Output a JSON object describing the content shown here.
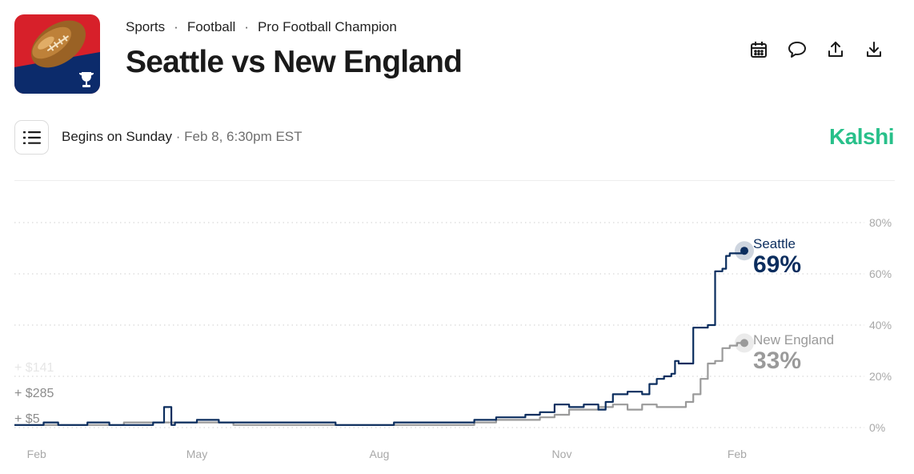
{
  "market": {
    "breadcrumbs": [
      "Sports",
      "Football",
      "Pro Football Champion"
    ],
    "title": "Seattle vs New England",
    "begins_label": "Begins on Sunday",
    "begins_date": " · Feb 8, 6:30pm EST",
    "brand": "Kalshi",
    "logo_icon": "football-trophy-icon"
  },
  "actions": [
    {
      "name": "calendar-icon"
    },
    {
      "name": "comment-icon"
    },
    {
      "name": "share-icon"
    },
    {
      "name": "download-icon"
    }
  ],
  "colors": {
    "seattle": "#0b2d5e",
    "new_england": "#9a9a9a",
    "brand": "#28c08a"
  },
  "chart_data": {
    "type": "line",
    "ylim": [
      0,
      80
    ],
    "yticks": [
      "80%",
      "60%",
      "40%",
      "20%",
      "0%"
    ],
    "ytick_values": [
      80,
      60,
      40,
      20,
      0
    ],
    "xticks": [
      "Feb",
      "May",
      "Aug",
      "Nov",
      "Feb"
    ],
    "grid": true,
    "annotations": [
      "+ $141",
      "+ $285",
      "+ $5"
    ],
    "series": [
      {
        "name": "Seattle",
        "current": "69%",
        "color": "#0b2d5e",
        "x": [
          0,
          0.02,
          0.04,
          0.06,
          0.08,
          0.1,
          0.13,
          0.16,
          0.19,
          0.2,
          0.205,
          0.21,
          0.215,
          0.22,
          0.25,
          0.28,
          0.32,
          0.36,
          0.4,
          0.44,
          0.48,
          0.52,
          0.56,
          0.6,
          0.62,
          0.63,
          0.64,
          0.66,
          0.68,
          0.7,
          0.72,
          0.74,
          0.76,
          0.78,
          0.8,
          0.81,
          0.82,
          0.84,
          0.86,
          0.87,
          0.88,
          0.89,
          0.9,
          0.905,
          0.91,
          0.93,
          0.95,
          0.96,
          0.97,
          0.975,
          0.98,
          0.99,
          1.0
        ],
        "values": [
          1,
          1,
          2,
          1,
          1,
          2,
          1,
          1,
          2,
          2,
          8,
          8,
          1,
          2,
          3,
          2,
          2,
          2,
          2,
          1,
          1,
          2,
          2,
          2,
          2,
          3,
          3,
          4,
          4,
          5,
          6,
          9,
          8,
          9,
          7,
          10,
          13,
          14,
          13,
          17,
          19,
          20,
          21,
          26,
          25,
          39,
          40,
          61,
          62,
          67,
          68,
          68,
          69
        ]
      },
      {
        "name": "New England",
        "current": "33%",
        "color": "#9a9a9a",
        "x": [
          0,
          0.05,
          0.1,
          0.15,
          0.2,
          0.25,
          0.3,
          0.35,
          0.4,
          0.45,
          0.5,
          0.55,
          0.6,
          0.63,
          0.66,
          0.7,
          0.72,
          0.74,
          0.76,
          0.78,
          0.8,
          0.82,
          0.84,
          0.86,
          0.88,
          0.9,
          0.91,
          0.92,
          0.93,
          0.94,
          0.95,
          0.96,
          0.97,
          0.98,
          0.99,
          1.0
        ],
        "values": [
          1,
          1,
          1,
          2,
          2,
          2,
          1,
          1,
          1,
          1,
          1,
          1,
          1,
          2,
          3,
          3,
          4,
          5,
          7,
          7,
          8,
          9,
          7,
          9,
          8,
          8,
          8,
          10,
          13,
          19,
          25,
          26,
          31,
          32,
          33,
          33
        ]
      }
    ]
  }
}
